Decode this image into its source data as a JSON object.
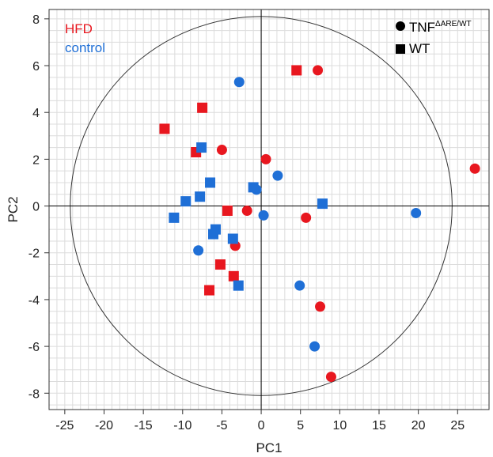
{
  "chart_data": {
    "type": "scatter",
    "xlabel": "PC1",
    "ylabel": "PC2",
    "xlim": [
      -27,
      29
    ],
    "ylim": [
      -8.7,
      8.4
    ],
    "xticks": [
      -25,
      -20,
      -15,
      -10,
      -5,
      0,
      5,
      10,
      15,
      20,
      25
    ],
    "yticks": [
      8,
      6,
      4,
      2,
      0,
      -2,
      -4,
      -6,
      -8
    ],
    "xtick_labels": [
      "-25",
      "-20",
      "-15",
      "-10",
      "-5",
      "0",
      "5",
      "10",
      "15",
      "20",
      "25"
    ],
    "ytick_labels": [
      "8",
      "6",
      "4",
      "2",
      "0",
      "-2",
      "-4",
      "-6",
      "-8"
    ],
    "grid": true,
    "confidence_ellipse": {
      "rx": 24.3,
      "ry": 8.1
    },
    "color_legend": [
      {
        "label": "HFD",
        "color": "#e8171f"
      },
      {
        "label": "control",
        "color": "#1f6fd6"
      }
    ],
    "shape_legend": [
      {
        "label": "TNF",
        "superscript": "ΔARE/WT",
        "marker": "circle"
      },
      {
        "label": "WT",
        "superscript": "",
        "marker": "square"
      }
    ],
    "series": [
      {
        "group": "HFD",
        "genotype": "TNF",
        "marker": "circle",
        "color": "#e8171f",
        "points": [
          [
            7.2,
            5.8
          ],
          [
            -5.0,
            2.4
          ],
          [
            0.6,
            2.0
          ],
          [
            -1.8,
            -0.2
          ],
          [
            5.7,
            -0.5
          ],
          [
            -3.3,
            -1.7
          ],
          [
            7.5,
            -4.3
          ],
          [
            8.9,
            -7.3
          ],
          [
            27.2,
            1.6
          ]
        ]
      },
      {
        "group": "HFD",
        "genotype": "WT",
        "marker": "square",
        "color": "#e8171f",
        "points": [
          [
            -12.3,
            3.3
          ],
          [
            -7.5,
            4.2
          ],
          [
            -8.3,
            2.3
          ],
          [
            4.5,
            5.8
          ],
          [
            -4.3,
            -0.2
          ],
          [
            -5.2,
            -2.5
          ],
          [
            -3.5,
            -3.0
          ],
          [
            -6.6,
            -3.6
          ]
        ]
      },
      {
        "group": "control",
        "genotype": "TNF",
        "marker": "circle",
        "color": "#1f6fd6",
        "points": [
          [
            -2.8,
            5.3
          ],
          [
            -0.6,
            0.7
          ],
          [
            2.1,
            1.3
          ],
          [
            0.3,
            -0.4
          ],
          [
            -8.0,
            -1.9
          ],
          [
            4.9,
            -3.4
          ],
          [
            6.8,
            -6.0
          ],
          [
            19.7,
            -0.3
          ]
        ]
      },
      {
        "group": "control",
        "genotype": "WT",
        "marker": "square",
        "color": "#1f6fd6",
        "points": [
          [
            -7.6,
            2.5
          ],
          [
            -6.5,
            1.0
          ],
          [
            -7.8,
            0.4
          ],
          [
            -9.6,
            0.2
          ],
          [
            -11.1,
            -0.5
          ],
          [
            -5.8,
            -1.0
          ],
          [
            -6.1,
            -1.2
          ],
          [
            -3.6,
            -1.4
          ],
          [
            -1.0,
            0.8
          ],
          [
            7.8,
            0.1
          ],
          [
            -2.9,
            -3.4
          ]
        ]
      }
    ]
  }
}
